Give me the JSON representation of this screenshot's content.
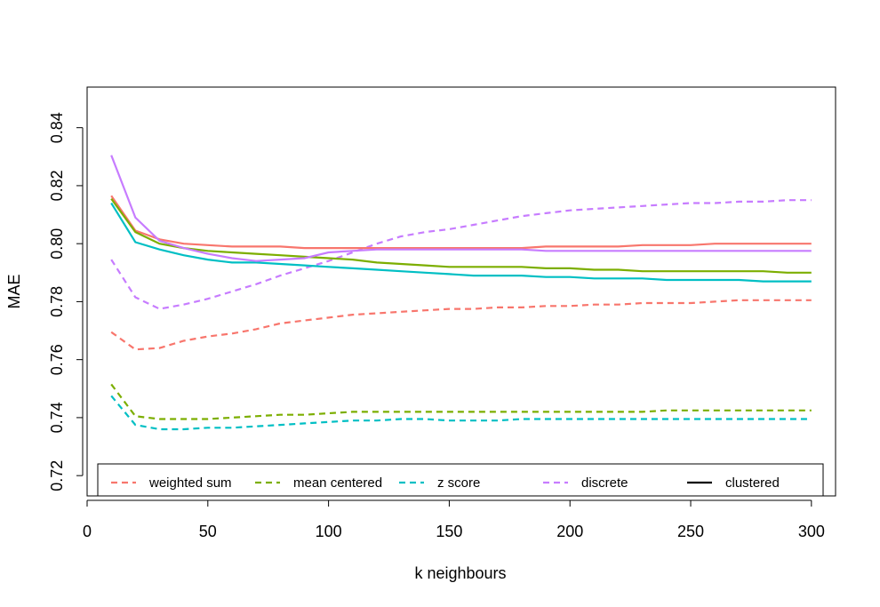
{
  "chart_data": {
    "type": "line",
    "title": "",
    "xlabel": "k neighbours",
    "ylabel": "MAE",
    "xlim": [
      0,
      310
    ],
    "ylim": [
      0.713,
      0.854
    ],
    "x_ticks": [
      0,
      50,
      100,
      150,
      200,
      250,
      300
    ],
    "y_ticks": [
      0.72,
      0.74,
      0.76,
      0.78,
      0.8,
      0.82,
      0.84
    ],
    "grid": false,
    "legend": {
      "placement": "bottom",
      "entries": [
        {
          "label": "weighted sum",
          "color": "#F8766D",
          "style": "dashed"
        },
        {
          "label": "mean centered",
          "color": "#7CAE00",
          "style": "dashed"
        },
        {
          "label": "z score",
          "color": "#00BFC4",
          "style": "dashed"
        },
        {
          "label": "discrete",
          "color": "#C77CFF",
          "style": "dashed"
        },
        {
          "label": "clustered",
          "color": "#000000",
          "style": "solid"
        }
      ]
    },
    "x": [
      10,
      20,
      30,
      40,
      50,
      60,
      70,
      80,
      90,
      100,
      110,
      120,
      130,
      140,
      150,
      160,
      170,
      180,
      190,
      200,
      210,
      220,
      230,
      240,
      250,
      260,
      270,
      280,
      290,
      300
    ],
    "series": [
      {
        "name": "weighted sum",
        "color": "#F8766D",
        "style": "dashed",
        "values": [
          0.7695,
          0.7635,
          0.764,
          0.7665,
          0.768,
          0.769,
          0.7705,
          0.7725,
          0.7735,
          0.7745,
          0.7755,
          0.776,
          0.7765,
          0.777,
          0.7775,
          0.7775,
          0.778,
          0.778,
          0.7785,
          0.7785,
          0.779,
          0.779,
          0.7795,
          0.7795,
          0.7795,
          0.78,
          0.7805,
          0.7805,
          0.7805,
          0.7805
        ]
      },
      {
        "name": "mean centered",
        "color": "#7CAE00",
        "style": "dashed",
        "values": [
          0.7515,
          0.7405,
          0.7395,
          0.7395,
          0.7395,
          0.74,
          0.7405,
          0.741,
          0.741,
          0.7415,
          0.742,
          0.742,
          0.742,
          0.742,
          0.742,
          0.742,
          0.742,
          0.742,
          0.742,
          0.742,
          0.742,
          0.742,
          0.742,
          0.7425,
          0.7425,
          0.7425,
          0.7425,
          0.7425,
          0.7425,
          0.7425
        ]
      },
      {
        "name": "z score",
        "color": "#00BFC4",
        "style": "dashed",
        "values": [
          0.7475,
          0.7375,
          0.736,
          0.736,
          0.7365,
          0.7365,
          0.737,
          0.7375,
          0.738,
          0.7385,
          0.739,
          0.739,
          0.7395,
          0.7395,
          0.739,
          0.739,
          0.739,
          0.7395,
          0.7395,
          0.7395,
          0.7395,
          0.7395,
          0.7395,
          0.7395,
          0.7395,
          0.7395,
          0.7395,
          0.7395,
          0.7395,
          0.7395
        ]
      },
      {
        "name": "discrete",
        "color": "#C77CFF",
        "style": "dashed",
        "values": [
          0.7945,
          0.7815,
          0.7775,
          0.779,
          0.781,
          0.7835,
          0.786,
          0.789,
          0.7915,
          0.794,
          0.797,
          0.8,
          0.8025,
          0.804,
          0.805,
          0.8065,
          0.808,
          0.8095,
          0.8105,
          0.8115,
          0.812,
          0.8125,
          0.813,
          0.8135,
          0.814,
          0.814,
          0.8145,
          0.8145,
          0.815,
          0.815
        ]
      },
      {
        "color": "#F8766D",
        "style": "solid",
        "values": [
          0.8165,
          0.8045,
          0.8015,
          0.8,
          0.7995,
          0.799,
          0.799,
          0.799,
          0.7985,
          0.7985,
          0.7985,
          0.7985,
          0.7985,
          0.7985,
          0.7985,
          0.7985,
          0.7985,
          0.7985,
          0.799,
          0.799,
          0.799,
          0.799,
          0.7995,
          0.7995,
          0.7995,
          0.8,
          0.8,
          0.8,
          0.8,
          0.8
        ]
      },
      {
        "color": "#7CAE00",
        "style": "solid",
        "values": [
          0.8155,
          0.804,
          0.8,
          0.7985,
          0.7975,
          0.797,
          0.7965,
          0.796,
          0.7955,
          0.795,
          0.7945,
          0.7935,
          0.793,
          0.7925,
          0.792,
          0.792,
          0.792,
          0.792,
          0.7915,
          0.7915,
          0.791,
          0.791,
          0.7905,
          0.7905,
          0.7905,
          0.7905,
          0.7905,
          0.7905,
          0.79,
          0.79
        ]
      },
      {
        "color": "#00BFC4",
        "style": "solid",
        "values": [
          0.814,
          0.8005,
          0.798,
          0.796,
          0.7945,
          0.7935,
          0.7935,
          0.793,
          0.7925,
          0.792,
          0.7915,
          0.791,
          0.7905,
          0.79,
          0.7895,
          0.789,
          0.789,
          0.789,
          0.7885,
          0.7885,
          0.788,
          0.788,
          0.788,
          0.7875,
          0.7875,
          0.7875,
          0.7875,
          0.787,
          0.787,
          0.787
        ]
      },
      {
        "color": "#C77CFF",
        "style": "solid",
        "values": [
          0.8305,
          0.809,
          0.801,
          0.7985,
          0.7965,
          0.795,
          0.794,
          0.7945,
          0.795,
          0.797,
          0.7975,
          0.798,
          0.798,
          0.798,
          0.798,
          0.798,
          0.798,
          0.798,
          0.7975,
          0.7975,
          0.7975,
          0.7975,
          0.7975,
          0.7975,
          0.7975,
          0.7975,
          0.7975,
          0.7975,
          0.7975,
          0.7975
        ]
      }
    ]
  }
}
